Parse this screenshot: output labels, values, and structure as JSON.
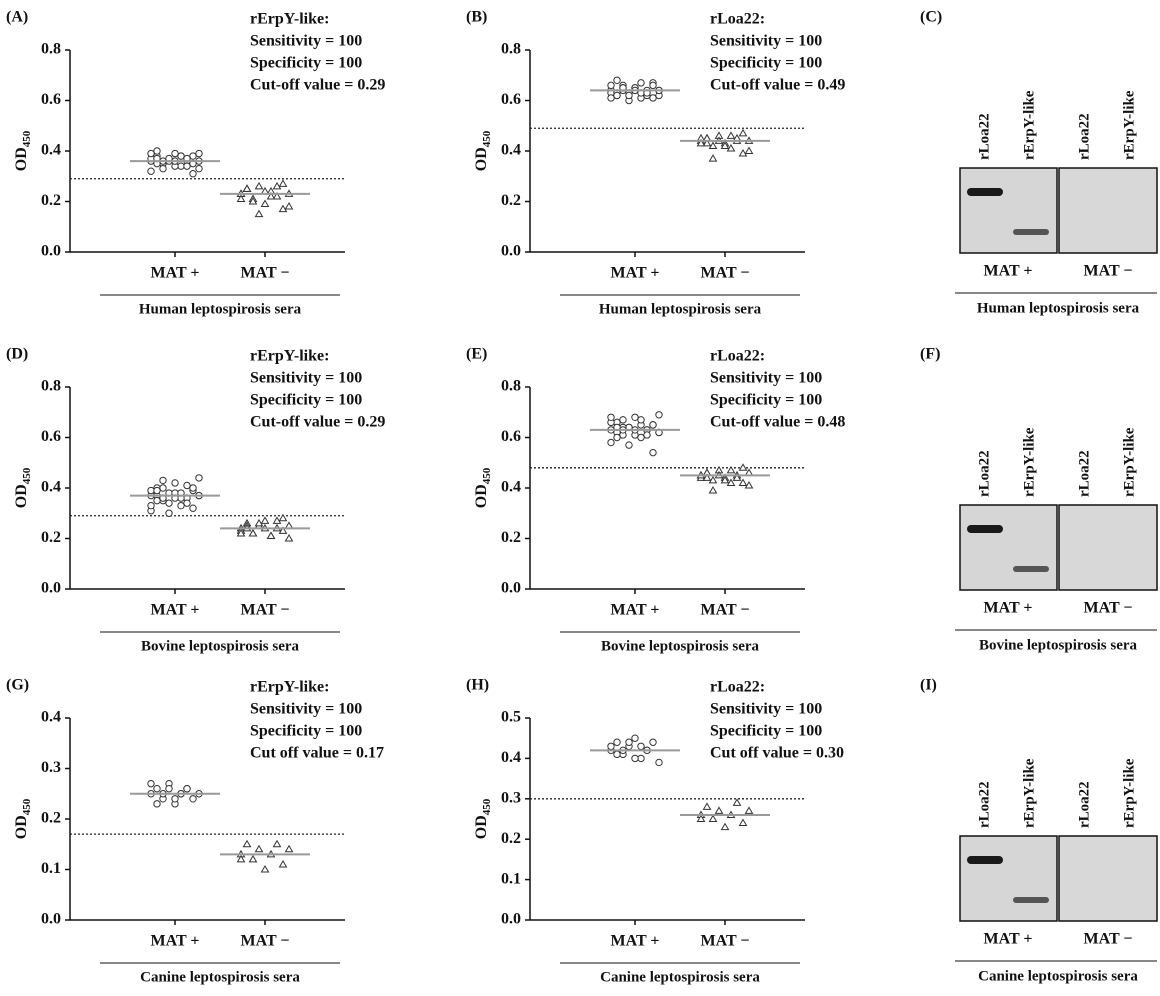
{
  "chart_data": [
    {
      "type": "dot",
      "label": "(A)",
      "annotation": [
        "rErpY-like:",
        "Sensitivity = 100",
        "Specificity = 100",
        "Cut-off value = 0.29"
      ],
      "ylabel": {
        "text": "OD",
        "sub": "450"
      },
      "categories": [
        "MAT +",
        "MAT −"
      ],
      "xlabel": "Human leptospirosis sera",
      "ylim": [
        0,
        0.8
      ],
      "yticks": [
        {
          "value": 0,
          "label": "0.0"
        },
        0.2,
        0.4,
        0.6,
        0.8
      ],
      "cutoff": 0.29,
      "groups": [
        {
          "marker": "circle",
          "mean": 0.36,
          "values": [
            0.36,
            0.38,
            0.35,
            0.37,
            0.39,
            0.34,
            0.36,
            0.38,
            0.33,
            0.37,
            0.4,
            0.35,
            0.36,
            0.34,
            0.38,
            0.37,
            0.31,
            0.36,
            0.39,
            0.35,
            0.33,
            0.37,
            0.36,
            0.38,
            0.34,
            0.35,
            0.39,
            0.32,
            0.37,
            0.36
          ]
        },
        {
          "marker": "triangle",
          "mean": 0.23,
          "values": [
            0.23,
            0.25,
            0.21,
            0.26,
            0.19,
            0.24,
            0.22,
            0.27,
            0.18,
            0.23,
            0.25,
            0.2,
            0.15,
            0.24,
            0.22,
            0.26,
            0.17,
            0.23,
            0.21,
            0.25
          ]
        }
      ]
    },
    {
      "type": "dot",
      "label": "(B)",
      "annotation": [
        "rLoa22:",
        "Sensitivity = 100",
        "Specificity = 100",
        "Cut-off value = 0.49"
      ],
      "ylabel": {
        "text": "OD",
        "sub": "450"
      },
      "categories": [
        "MAT +",
        "MAT −"
      ],
      "xlabel": "Human leptospirosis sera",
      "ylim": [
        0,
        0.8
      ],
      "yticks": [
        {
          "value": 0,
          "label": "0.0"
        },
        0.2,
        0.4,
        0.6,
        0.8
      ],
      "cutoff": 0.49,
      "groups": [
        {
          "marker": "circle",
          "mean": 0.64,
          "values": [
            0.64,
            0.62,
            0.66,
            0.63,
            0.65,
            0.61,
            0.64,
            0.67,
            0.62,
            0.63,
            0.68,
            0.64,
            0.6,
            0.65,
            0.63,
            0.62,
            0.66,
            0.64,
            0.61,
            0.63,
            0.65,
            0.62,
            0.64,
            0.67,
            0.63,
            0.61,
            0.64,
            0.66,
            0.62,
            0.65
          ]
        },
        {
          "marker": "triangle",
          "mean": 0.44,
          "values": [
            0.44,
            0.45,
            0.42,
            0.46,
            0.43,
            0.41,
            0.44,
            0.47,
            0.4,
            0.45,
            0.43,
            0.37,
            0.44,
            0.42,
            0.46,
            0.45,
            0.39,
            0.44,
            0.43,
            0.45
          ]
        }
      ]
    },
    {
      "type": "dot",
      "label": "(D)",
      "annotation": [
        "rErpY-like:",
        "Sensitivity = 100",
        "Specificity = 100",
        "Cut-off value = 0.29"
      ],
      "ylabel": {
        "text": "OD",
        "sub": "450"
      },
      "categories": [
        "MAT +",
        "MAT −"
      ],
      "xlabel": "Bovine leptospirosis sera",
      "ylim": [
        0,
        0.8
      ],
      "yticks": [
        {
          "value": 0,
          "label": "0.0"
        },
        0.2,
        0.4,
        0.6,
        0.8
      ],
      "cutoff": 0.29,
      "groups": [
        {
          "marker": "circle",
          "mean": 0.37,
          "values": [
            0.37,
            0.4,
            0.35,
            0.38,
            0.42,
            0.33,
            0.36,
            0.39,
            0.44,
            0.31,
            0.37,
            0.4,
            0.34,
            0.38,
            0.36,
            0.41,
            0.32,
            0.37,
            0.39,
            0.35,
            0.43,
            0.3,
            0.36,
            0.38,
            0.34,
            0.4,
            0.37,
            0.33,
            0.39,
            0.36
          ]
        },
        {
          "marker": "triangle",
          "mean": 0.24,
          "values": [
            0.24,
            0.26,
            0.22,
            0.25,
            0.27,
            0.21,
            0.24,
            0.28,
            0.2,
            0.23,
            0.25,
            0.22,
            0.26,
            0.24,
            0.21,
            0.27,
            0.23,
            0.25,
            0.22,
            0.24
          ]
        }
      ]
    },
    {
      "type": "dot",
      "label": "(E)",
      "annotation": [
        "rLoa22:",
        "Sensitivity = 100",
        "Specificity = 100",
        "Cut-off value = 0.48"
      ],
      "ylabel": {
        "text": "OD",
        "sub": "450"
      },
      "categories": [
        "MAT +",
        "MAT −"
      ],
      "xlabel": "Bovine leptospirosis sera",
      "ylim": [
        0,
        0.8
      ],
      "yticks": [
        {
          "value": 0,
          "label": "0.0"
        },
        0.2,
        0.4,
        0.6,
        0.8
      ],
      "cutoff": 0.48,
      "groups": [
        {
          "marker": "circle",
          "mean": 0.63,
          "values": [
            0.63,
            0.66,
            0.61,
            0.64,
            0.68,
            0.6,
            0.63,
            0.65,
            0.69,
            0.58,
            0.62,
            0.67,
            0.64,
            0.61,
            0.65,
            0.63,
            0.54,
            0.62,
            0.66,
            0.6,
            0.64,
            0.57,
            0.63,
            0.67,
            0.61,
            0.65,
            0.62,
            0.68,
            0.64,
            0.63
          ]
        },
        {
          "marker": "triangle",
          "mean": 0.45,
          "values": [
            0.45,
            0.46,
            0.43,
            0.47,
            0.44,
            0.42,
            0.45,
            0.48,
            0.41,
            0.44,
            0.46,
            0.39,
            0.45,
            0.43,
            0.47,
            0.44,
            0.42,
            0.46,
            0.45,
            0.44
          ]
        }
      ]
    },
    {
      "type": "dot",
      "label": "(G)",
      "annotation": [
        "rErpY-like:",
        "Sensitivity = 100",
        "Specificity = 100",
        "Cut off value = 0.17"
      ],
      "ylabel": {
        "text": "OD",
        "sub": "450"
      },
      "categories": [
        "MAT +",
        "MAT −"
      ],
      "xlabel": "Canine leptospirosis sera",
      "ylim": [
        0,
        0.4
      ],
      "yticks": [
        {
          "value": 0,
          "label": "0.0"
        },
        0.1,
        0.2,
        0.3,
        0.4
      ],
      "cutoff": 0.17,
      "groups": [
        {
          "marker": "circle",
          "mean": 0.25,
          "values": [
            0.25,
            0.26,
            0.24,
            0.27,
            0.23,
            0.25,
            0.26,
            0.24,
            0.25,
            0.27,
            0.23,
            0.25,
            0.26,
            0.24,
            0.25,
            0.26
          ]
        },
        {
          "marker": "triangle",
          "mean": 0.13,
          "values": [
            0.13,
            0.15,
            0.12,
            0.14,
            0.1,
            0.13,
            0.15,
            0.11,
            0.14,
            0.12
          ]
        }
      ]
    },
    {
      "type": "dot",
      "label": "(H)",
      "annotation": [
        "rLoa22:",
        "Sensitivity = 100",
        "Specificity = 100",
        "Cut off value = 0.30"
      ],
      "ylabel": {
        "text": "OD",
        "sub": "450"
      },
      "categories": [
        "MAT +",
        "MAT −"
      ],
      "xlabel": "Canine leptospirosis sera",
      "ylim": [
        0,
        0.5
      ],
      "yticks": [
        {
          "value": 0,
          "label": "0.0"
        },
        0.1,
        0.2,
        0.3,
        0.4,
        0.5
      ],
      "cutoff": 0.3,
      "groups": [
        {
          "marker": "circle",
          "mean": 0.42,
          "values": [
            0.42,
            0.44,
            0.41,
            0.43,
            0.45,
            0.4,
            0.42,
            0.44,
            0.39,
            0.43,
            0.41,
            0.42,
            0.44,
            0.4,
            0.43,
            0.42
          ]
        },
        {
          "marker": "triangle",
          "mean": 0.26,
          "values": [
            0.26,
            0.28,
            0.25,
            0.27,
            0.23,
            0.26,
            0.29,
            0.24,
            0.27,
            0.25
          ]
        }
      ]
    }
  ],
  "blots": [
    {
      "label": "(C)",
      "lanes": [
        "rLoa22",
        "rErpY-like",
        "rLoa22",
        "rErpY-like"
      ],
      "categories": [
        "MAT +",
        "MAT −"
      ],
      "xlabel": "Human leptospirosis sera"
    },
    {
      "label": "(F)",
      "lanes": [
        "rLoa22",
        "rErpY-like",
        "rLoa22",
        "rErpY-like"
      ],
      "categories": [
        "MAT +",
        "MAT −"
      ],
      "xlabel": "Bovine leptospirosis sera"
    },
    {
      "label": "(I)",
      "lanes": [
        "rLoa22",
        "rErpY-like",
        "rLoa22",
        "rErpY-like"
      ],
      "categories": [
        "MAT +",
        "MAT −"
      ],
      "xlabel": "Canine leptospirosis sera"
    }
  ]
}
